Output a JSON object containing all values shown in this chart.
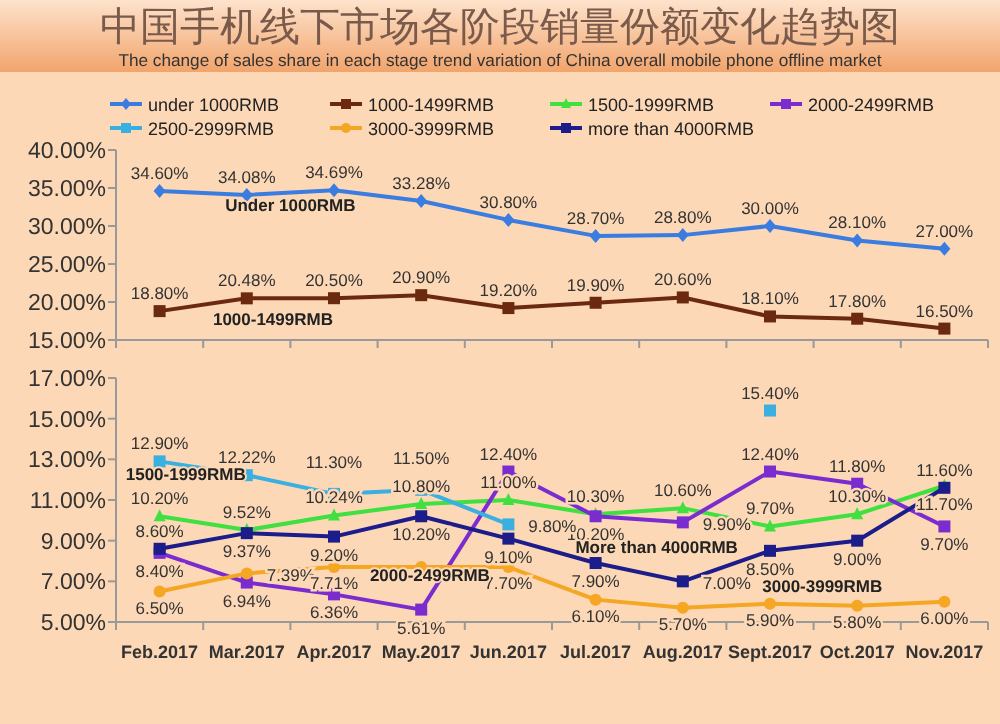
{
  "chart_data": [
    {
      "type": "line",
      "title": "中国手机线下市场各阶段销量份额变化趋势图",
      "subtitle": "The change of sales share in each stage trend variation of China overall mobile phone offline market",
      "categories": [
        null,
        null,
        null,
        null,
        null,
        null,
        null,
        null,
        null,
        null
      ],
      "ylim": [
        15,
        40
      ],
      "yticks": [
        {
          "value": 15,
          "label": "15.00%"
        },
        {
          "value": 20,
          "label": "20.00%"
        },
        {
          "value": 25,
          "label": "25.00%"
        },
        {
          "value": 30,
          "label": "30.00%"
        },
        {
          "value": 35,
          "label": "35.00%"
        },
        {
          "value": 40,
          "label": "40.00%"
        }
      ],
      "grid": false,
      "legend": "top",
      "series": [
        {
          "name": "under 1000RMB",
          "color": "#3a7ce0",
          "marker": "diamond",
          "values": [
            34.6,
            34.08,
            34.69,
            33.28,
            30.8,
            28.7,
            28.8,
            30.0,
            28.1,
            27.0
          ],
          "value_labels": [
            "34.60%",
            "34.08%",
            "34.69%",
            "33.28%",
            "30.80%",
            "28.70%",
            "28.80%",
            "30.00%",
            "28.10%",
            "27.00%"
          ]
        },
        {
          "name": "1000-1499RMB",
          "color": "#6b2a10",
          "marker": "square",
          "values": [
            18.8,
            20.48,
            20.5,
            20.9,
            19.2,
            19.9,
            20.6,
            18.1,
            17.8,
            16.5
          ],
          "value_labels": [
            "18.80%",
            "20.48%",
            "20.50%",
            "20.90%",
            "19.20%",
            "19.90%",
            "20.60%",
            "18.10%",
            "17.80%",
            "16.50%"
          ]
        }
      ],
      "annotations": [
        "Under 1000RMB",
        "1000-1499RMB"
      ]
    },
    {
      "type": "line",
      "categories": [
        "Feb.2017",
        "Mar.2017",
        "Apr.2017",
        "May.2017",
        "Jun.2017",
        "Jul.2017",
        "Aug.2017",
        "Sept.2017",
        "Oct.2017",
        "Nov.2017"
      ],
      "ylim": [
        5,
        17
      ],
      "yticks": [
        {
          "value": 5,
          "label": "5.00%"
        },
        {
          "value": 7,
          "label": "7.00%"
        },
        {
          "value": 9,
          "label": "9.00%"
        },
        {
          "value": 11,
          "label": "11.00%"
        },
        {
          "value": 13,
          "label": "13.00%"
        },
        {
          "value": 15,
          "label": "15.00%"
        },
        {
          "value": 17,
          "label": "17.00%"
        }
      ],
      "grid": false,
      "legend": "top",
      "series": [
        {
          "name": "1500-1999RMB",
          "color": "#3fe03f",
          "marker": "triangle",
          "values": [
            10.2,
            9.52,
            10.24,
            10.8,
            11.0,
            10.3,
            10.6,
            9.7,
            10.3,
            11.7
          ],
          "value_labels": [
            "10.20%",
            "9.52%",
            "10.24%",
            "10.80%",
            "11.00%",
            "10.30%",
            "10.60%",
            "9.70%",
            "10.30%",
            "11.70%"
          ]
        },
        {
          "name": "2000-2499RMB",
          "color": "#7a2ccf",
          "marker": "square",
          "values": [
            8.4,
            6.94,
            6.36,
            5.61,
            12.4,
            10.2,
            9.9,
            12.4,
            11.8,
            9.7
          ],
          "value_labels": [
            "8.40%",
            "6.94%",
            "6.36%",
            "5.61%",
            "12.40%",
            "10.20%",
            "9.90%",
            "12.40%",
            "11.80%",
            "9.70%"
          ]
        },
        {
          "name": "2500-2999RMB",
          "color": "#3ab0e0",
          "marker": "square",
          "values": [
            12.9,
            12.22,
            11.3,
            11.5,
            9.8,
            null,
            null,
            15.4,
            null,
            null
          ],
          "value_labels": [
            "12.90%",
            "12.22%",
            "11.30%",
            "11.50%",
            "9.80%",
            null,
            null,
            "15.40%",
            null,
            null
          ]
        },
        {
          "name": "3000-3999RMB",
          "color": "#f5a623",
          "marker": "circle",
          "values": [
            6.5,
            7.39,
            7.71,
            7.7,
            7.7,
            6.1,
            5.7,
            5.9,
            5.8,
            6.0
          ],
          "value_labels": [
            "6.50%",
            "7.39%",
            "7.71%",
            null,
            "7.70%",
            "6.10%",
            "5.70%",
            "5.90%",
            "5.80%",
            "6.00%"
          ]
        },
        {
          "name": "more than 4000RMB",
          "color": "#1c1c8a",
          "marker": "square",
          "values": [
            8.6,
            9.37,
            9.2,
            10.2,
            9.1,
            7.9,
            7.0,
            8.5,
            9.0,
            11.6
          ],
          "value_labels": [
            "8.60%",
            "9.37%",
            "9.20%",
            "10.20%",
            "9.10%",
            "7.90%",
            "7.00%",
            "8.50%",
            "9.00%",
            "11.60%"
          ]
        }
      ],
      "annotations": [
        "1500-1999RMB",
        "2000-2499RMB",
        "More than 4000RMB",
        "3000-3999RMB"
      ]
    }
  ]
}
